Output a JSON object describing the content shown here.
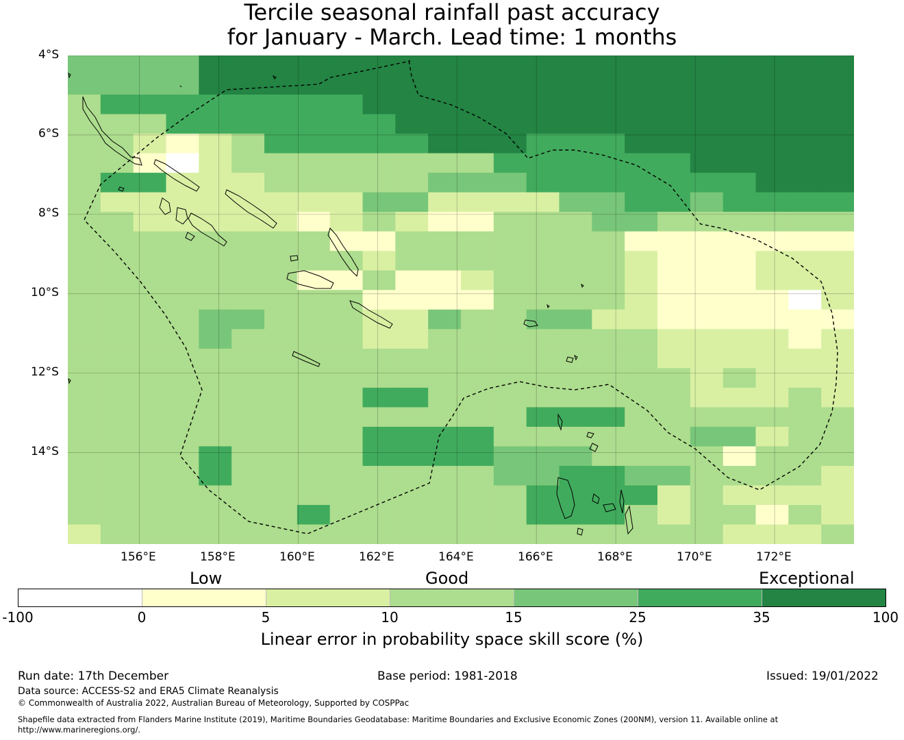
{
  "title": {
    "line1": "Tercile seasonal rainfall past accuracy",
    "line2": "for January - March. Lead time: 1 months"
  },
  "map": {
    "lat_labels": [
      "4°S",
      "6°S",
      "8°S",
      "10°S",
      "12°S",
      "14°S"
    ],
    "lon_labels": [
      "156°E",
      "158°E",
      "160°E",
      "162°E",
      "164°E",
      "166°E",
      "168°E",
      "170°E",
      "172°E"
    ],
    "lon_range": [
      154.2,
      174.0
    ],
    "lat_range": [
      -4.0,
      -16.3
    ],
    "grid_lons": [
      156,
      158,
      160,
      162,
      164,
      166,
      168,
      170,
      172
    ],
    "grid_lats": [
      -4,
      -6,
      -8,
      -10,
      -12,
      -14
    ],
    "cell_classes": [
      [
        4,
        4,
        4,
        4,
        6,
        6,
        6,
        6,
        6,
        6,
        6,
        6,
        6,
        6,
        6,
        6,
        6,
        6,
        6,
        6,
        6,
        6,
        6,
        6
      ],
      [
        4,
        4,
        4,
        4,
        6,
        6,
        6,
        6,
        6,
        6,
        6,
        6,
        6,
        6,
        6,
        6,
        6,
        6,
        6,
        6,
        6,
        6,
        6,
        6
      ],
      [
        3,
        5,
        5,
        5,
        5,
        5,
        5,
        5,
        5,
        6,
        6,
        6,
        6,
        6,
        6,
        6,
        6,
        6,
        6,
        6,
        6,
        6,
        6,
        6
      ],
      [
        3,
        3,
        3,
        5,
        5,
        5,
        5,
        5,
        5,
        5,
        6,
        6,
        6,
        6,
        6,
        6,
        6,
        6,
        6,
        6,
        6,
        6,
        6,
        6
      ],
      [
        3,
        3,
        2,
        1,
        2,
        3,
        5,
        5,
        5,
        5,
        5,
        6,
        6,
        6,
        5,
        5,
        5,
        6,
        6,
        6,
        6,
        6,
        6,
        6
      ],
      [
        3,
        3,
        1,
        0,
        2,
        3,
        3,
        3,
        3,
        3,
        3,
        3,
        3,
        5,
        5,
        5,
        5,
        5,
        5,
        6,
        6,
        6,
        6,
        6
      ],
      [
        3,
        5,
        5,
        2,
        2,
        2,
        3,
        3,
        3,
        3,
        3,
        4,
        4,
        4,
        5,
        5,
        5,
        5,
        5,
        5,
        5,
        6,
        6,
        6
      ],
      [
        3,
        2,
        2,
        2,
        2,
        2,
        2,
        2,
        2,
        4,
        4,
        2,
        2,
        2,
        2,
        4,
        4,
        5,
        5,
        4,
        5,
        5,
        5,
        5
      ],
      [
        3,
        3,
        2,
        2,
        2,
        2,
        2,
        1,
        2,
        3,
        2,
        1,
        1,
        3,
        3,
        3,
        4,
        4,
        3,
        3,
        3,
        3,
        3,
        3
      ],
      [
        3,
        3,
        3,
        3,
        3,
        3,
        3,
        3,
        1,
        1,
        3,
        3,
        3,
        3,
        3,
        3,
        3,
        1,
        1,
        1,
        1,
        1,
        1,
        1
      ],
      [
        3,
        3,
        3,
        3,
        3,
        3,
        3,
        3,
        3,
        2,
        3,
        3,
        3,
        3,
        3,
        3,
        3,
        2,
        1,
        1,
        1,
        2,
        2,
        2
      ],
      [
        3,
        3,
        3,
        3,
        3,
        3,
        3,
        1,
        1,
        3,
        1,
        1,
        2,
        3,
        3,
        3,
        3,
        2,
        1,
        1,
        1,
        2,
        2,
        2
      ],
      [
        3,
        3,
        3,
        3,
        3,
        3,
        3,
        3,
        3,
        1,
        1,
        1,
        1,
        3,
        3,
        3,
        3,
        2,
        1,
        1,
        1,
        1,
        0,
        2
      ],
      [
        3,
        3,
        3,
        3,
        4,
        4,
        3,
        3,
        3,
        2,
        2,
        4,
        3,
        3,
        4,
        4,
        2,
        2,
        1,
        1,
        1,
        1,
        1,
        1
      ],
      [
        3,
        3,
        3,
        3,
        4,
        3,
        3,
        3,
        3,
        2,
        2,
        3,
        3,
        3,
        3,
        3,
        3,
        3,
        2,
        2,
        2,
        2,
        1,
        2
      ],
      [
        3,
        3,
        3,
        3,
        3,
        3,
        3,
        3,
        3,
        3,
        3,
        3,
        3,
        3,
        3,
        3,
        3,
        3,
        2,
        2,
        2,
        2,
        2,
        2
      ],
      [
        3,
        3,
        3,
        3,
        3,
        3,
        3,
        3,
        3,
        3,
        3,
        3,
        3,
        3,
        3,
        3,
        3,
        3,
        3,
        2,
        3,
        2,
        2,
        2
      ],
      [
        3,
        3,
        3,
        3,
        3,
        3,
        3,
        3,
        3,
        5,
        5,
        3,
        3,
        3,
        3,
        3,
        3,
        3,
        3,
        2,
        2,
        2,
        3,
        2
      ],
      [
        3,
        3,
        3,
        3,
        3,
        3,
        3,
        3,
        3,
        3,
        3,
        3,
        3,
        3,
        5,
        5,
        5,
        3,
        3,
        3,
        3,
        3,
        3,
        3
      ],
      [
        3,
        3,
        3,
        3,
        3,
        3,
        3,
        3,
        3,
        5,
        5,
        5,
        5,
        3,
        3,
        3,
        3,
        3,
        3,
        4,
        4,
        2,
        3,
        3
      ],
      [
        3,
        3,
        3,
        3,
        5,
        3,
        3,
        3,
        3,
        5,
        5,
        5,
        5,
        4,
        4,
        4,
        3,
        3,
        3,
        3,
        1,
        3,
        3,
        3
      ],
      [
        3,
        3,
        3,
        3,
        5,
        3,
        3,
        3,
        3,
        3,
        3,
        3,
        3,
        4,
        4,
        5,
        5,
        4,
        4,
        3,
        3,
        3,
        3,
        2
      ],
      [
        3,
        3,
        3,
        3,
        3,
        3,
        3,
        3,
        3,
        3,
        3,
        3,
        3,
        3,
        5,
        5,
        5,
        5,
        2,
        3,
        2,
        2,
        2,
        2
      ],
      [
        3,
        3,
        3,
        3,
        3,
        3,
        3,
        5,
        3,
        3,
        3,
        3,
        3,
        3,
        5,
        5,
        5,
        3,
        2,
        3,
        3,
        1,
        3,
        2
      ],
      [
        2,
        3,
        3,
        3,
        3,
        3,
        3,
        3,
        3,
        3,
        3,
        3,
        3,
        3,
        3,
        3,
        3,
        3,
        3,
        3,
        2,
        2,
        2,
        3
      ]
    ]
  },
  "colorbar": {
    "colors": [
      "#ffffff",
      "#ffffcc",
      "#d9f0a3",
      "#addd8e",
      "#78c679",
      "#41ab5d",
      "#238443"
    ],
    "ticks": [
      "-100",
      "0",
      "5",
      "10",
      "15",
      "25",
      "35",
      "100"
    ],
    "categories": {
      "low": "Low",
      "good": "Good",
      "exceptional": "Exceptional"
    },
    "label": "Linear error in probability space skill score (%)"
  },
  "footer": {
    "run_date": "Run date: 17th December",
    "base_period": "Base period: 1981-2018",
    "issued": "Issued: 19/01/2022",
    "data_source": "Data source: ACCESS-S2 and ERA5 Climate Reanalysis",
    "copyright": "© Commonwealth of Australia 2022, Australian Bureau of Meteorology, Supported by COSPPac",
    "shapefile_line1": "Shapefile data extracted from Flanders Marine Institute (2019), Maritime Boundaries Geodatabase: Maritime Boundaries and Exclusive Economic Zones (200NM), version 11. Available online at",
    "shapefile_line2": "http://www.marineregions.org/."
  }
}
